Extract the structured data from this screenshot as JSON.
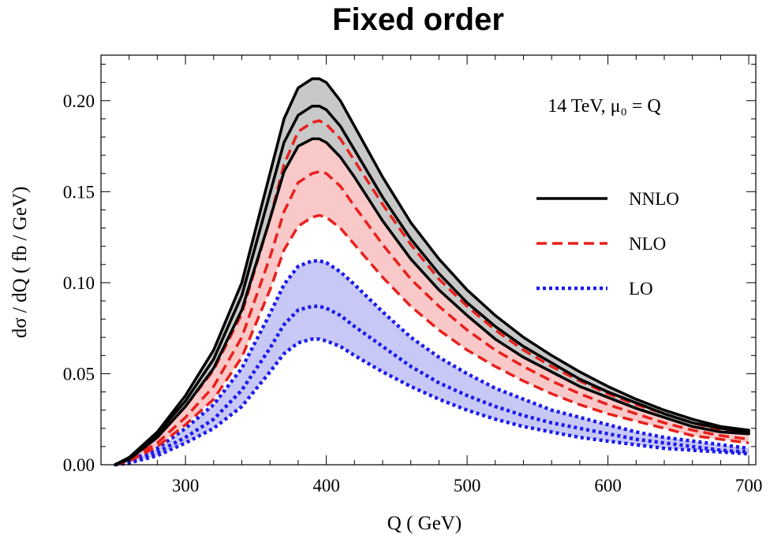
{
  "chart_data": {
    "type": "line",
    "title": "Fixed order",
    "xlabel": "Q ( GeV)",
    "ylabel": "dσ / dQ ( fb / GeV)",
    "xlim": [
      240,
      705
    ],
    "ylim": [
      0,
      0.225
    ],
    "xticks": [
      300,
      400,
      500,
      600,
      700
    ],
    "xtick_labels": [
      "300",
      "400",
      "500",
      "600",
      "700"
    ],
    "yticks": [
      0.0,
      0.05,
      0.1,
      0.15,
      0.2
    ],
    "ytick_labels": [
      "0.00",
      "0.05",
      "0.10",
      "0.15",
      "0.20"
    ],
    "annotation": "14 TeV, μ₀ = Q",
    "legend_position": "right",
    "grid": false,
    "x": [
      250,
      260,
      280,
      300,
      320,
      340,
      360,
      370,
      380,
      390,
      395,
      400,
      410,
      420,
      440,
      460,
      480,
      500,
      520,
      540,
      560,
      580,
      600,
      620,
      640,
      660,
      680,
      700
    ],
    "series": [
      {
        "name": "NNLO",
        "style": "solid",
        "color": "#000000",
        "band_color": "#c8c8c8",
        "upper": [
          0.0,
          0.004,
          0.018,
          0.038,
          0.063,
          0.1,
          0.16,
          0.19,
          0.207,
          0.212,
          0.212,
          0.21,
          0.2,
          0.186,
          0.158,
          0.133,
          0.113,
          0.096,
          0.082,
          0.07,
          0.06,
          0.051,
          0.043,
          0.036,
          0.03,
          0.025,
          0.021,
          0.019
        ],
        "central": [
          0.0,
          0.004,
          0.017,
          0.035,
          0.058,
          0.093,
          0.149,
          0.177,
          0.192,
          0.197,
          0.197,
          0.195,
          0.186,
          0.173,
          0.147,
          0.124,
          0.105,
          0.089,
          0.076,
          0.065,
          0.056,
          0.047,
          0.04,
          0.034,
          0.028,
          0.023,
          0.02,
          0.018
        ],
        "lower": [
          0.0,
          0.003,
          0.015,
          0.032,
          0.053,
          0.085,
          0.135,
          0.161,
          0.175,
          0.179,
          0.179,
          0.177,
          0.169,
          0.158,
          0.134,
          0.113,
          0.096,
          0.082,
          0.069,
          0.059,
          0.051,
          0.043,
          0.037,
          0.031,
          0.026,
          0.021,
          0.018,
          0.017
        ]
      },
      {
        "name": "NLO",
        "style": "dashed",
        "color": "#e8201c",
        "band_color": "#f9c8c8",
        "upper": [
          0.0,
          0.003,
          0.015,
          0.032,
          0.052,
          0.083,
          0.135,
          0.165,
          0.183,
          0.188,
          0.189,
          0.187,
          0.179,
          0.167,
          0.143,
          0.121,
          0.102,
          0.087,
          0.074,
          0.063,
          0.054,
          0.046,
          0.039,
          0.033,
          0.028,
          0.023,
          0.019,
          0.017
        ],
        "central": [
          0.0,
          0.003,
          0.012,
          0.026,
          0.043,
          0.07,
          0.114,
          0.139,
          0.155,
          0.16,
          0.161,
          0.16,
          0.153,
          0.142,
          0.121,
          0.102,
          0.087,
          0.074,
          0.063,
          0.054,
          0.046,
          0.039,
          0.033,
          0.028,
          0.023,
          0.019,
          0.016,
          0.014
        ],
        "lower": [
          0.0,
          0.002,
          0.01,
          0.022,
          0.036,
          0.059,
          0.096,
          0.118,
          0.131,
          0.136,
          0.137,
          0.136,
          0.13,
          0.121,
          0.103,
          0.087,
          0.074,
          0.063,
          0.054,
          0.046,
          0.039,
          0.033,
          0.028,
          0.024,
          0.02,
          0.016,
          0.014,
          0.012
        ]
      },
      {
        "name": "LO",
        "style": "dotted",
        "color": "#1a1aee",
        "band_color": "#c8c8f6",
        "upper": [
          0.0,
          0.002,
          0.009,
          0.02,
          0.033,
          0.053,
          0.083,
          0.099,
          0.109,
          0.112,
          0.112,
          0.111,
          0.106,
          0.099,
          0.084,
          0.07,
          0.059,
          0.05,
          0.042,
          0.036,
          0.03,
          0.026,
          0.022,
          0.018,
          0.015,
          0.013,
          0.011,
          0.009
        ],
        "central": [
          0.0,
          0.001,
          0.007,
          0.015,
          0.025,
          0.041,
          0.064,
          0.077,
          0.085,
          0.087,
          0.087,
          0.086,
          0.082,
          0.076,
          0.065,
          0.054,
          0.045,
          0.038,
          0.032,
          0.027,
          0.023,
          0.02,
          0.017,
          0.014,
          0.012,
          0.01,
          0.008,
          0.007
        ],
        "lower": [
          0.0,
          0.001,
          0.005,
          0.012,
          0.02,
          0.032,
          0.051,
          0.061,
          0.067,
          0.069,
          0.069,
          0.068,
          0.065,
          0.06,
          0.051,
          0.043,
          0.036,
          0.03,
          0.025,
          0.021,
          0.018,
          0.015,
          0.013,
          0.011,
          0.009,
          0.008,
          0.007,
          0.006
        ]
      }
    ]
  }
}
